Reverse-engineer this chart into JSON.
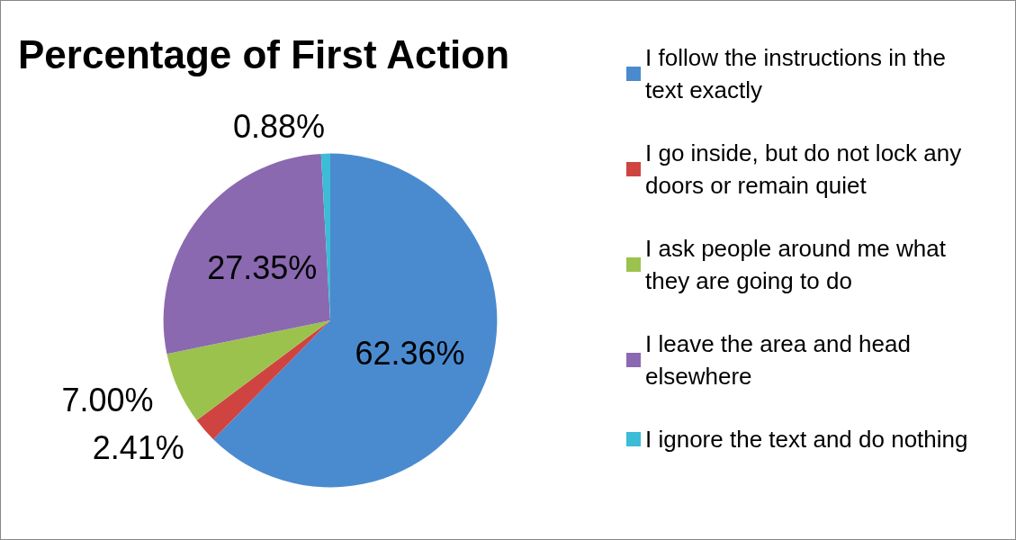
{
  "chart_data": {
    "type": "pie",
    "title": "Percentage of First Action",
    "categories": [
      "I follow the instructions in the text exactly",
      "I go inside, but do not lock any doors or remain quiet",
      "I ask people around me what they are going to do",
      "I leave the area and head elsewhere",
      "I ignore the text and do nothing"
    ],
    "values": [
      62.36,
      2.41,
      7.0,
      27.35,
      0.88
    ],
    "colors": [
      "#4a8bd0",
      "#cf4440",
      "#9cc24e",
      "#8a69b0",
      "#3cbcd6"
    ],
    "value_labels": [
      "62.36%",
      "2.41%",
      "7.00%",
      "27.35%",
      "0.88%"
    ],
    "legend": "right"
  }
}
